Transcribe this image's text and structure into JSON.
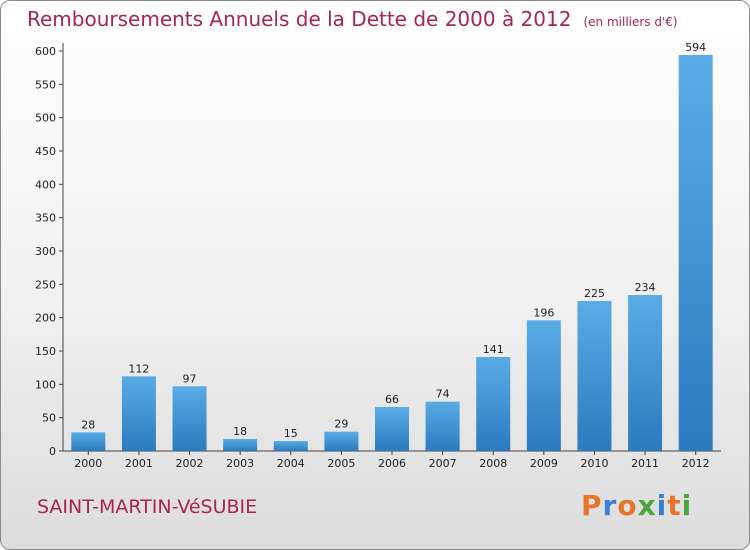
{
  "chart_data": {
    "type": "bar",
    "title": "Remboursements Annuels de la Dette de 2000 à 2012",
    "subtitle": "(en milliers d'€)",
    "categories": [
      "2000",
      "2001",
      "2002",
      "2003",
      "2004",
      "2005",
      "2006",
      "2007",
      "2008",
      "2009",
      "2010",
      "2011",
      "2012"
    ],
    "values": [
      28,
      112,
      97,
      18,
      15,
      29,
      66,
      74,
      141,
      196,
      225,
      234,
      594
    ],
    "ylim": [
      0,
      600
    ],
    "yticks": [
      0,
      50,
      100,
      150,
      200,
      250,
      300,
      350,
      400,
      450,
      500,
      550,
      600
    ],
    "grid": false,
    "bar_color": "#3b8fd4",
    "xlabel": "",
    "ylabel": ""
  },
  "commune": "SAINT-MARTIN-VéSUBIE",
  "logo": {
    "letters": [
      "P",
      "r",
      "o",
      "x",
      "i",
      "t",
      "i"
    ],
    "colors": [
      "#e8742a",
      "#3a7fd0",
      "#e8742a",
      "#4aa63a",
      "#3a7fd0",
      "#e8742a",
      "#4aa63a"
    ]
  },
  "colors": {
    "title": "#a6264c"
  }
}
